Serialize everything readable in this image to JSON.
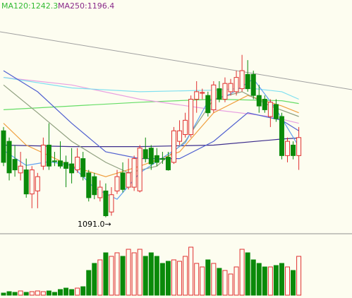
{
  "chart_data": {
    "type": "candlestick",
    "labels": [
      {
        "text": "MA120:1242.3",
        "color": "#33bb33"
      },
      {
        "text": "MA250:1196.4",
        "color": "#8a2a8a"
      }
    ],
    "annotation": "1091.0→",
    "up_color": "#e03030",
    "down_color": "#0a8a0a",
    "ylim": [
      1070,
      1380
    ],
    "open": [
      1206,
      1192,
      1168,
      1150,
      1154,
      1122,
      1126,
      1159,
      1187,
      1166,
      1166,
      1164,
      1162,
      1154,
      1169,
      1150,
      1145,
      1117,
      1126,
      1098,
      1126,
      1150,
      1131,
      1131,
      1126,
      1181,
      1183,
      1173,
      1169,
      1171,
      1164,
      1192,
      1201,
      1201,
      1248,
      1256,
      1253,
      1234,
      1262,
      1248,
      1258,
      1258,
      1262,
      1281,
      1281,
      1253,
      1248,
      1225,
      1241,
      1225,
      1173,
      1187,
      1173
    ],
    "high": [
      1211,
      1197,
      1187,
      1178,
      1169,
      1159,
      1150,
      1197,
      1216,
      1178,
      1192,
      1173,
      1183,
      1183,
      1178,
      1154,
      1150,
      1140,
      1136,
      1131,
      1154,
      1164,
      1169,
      1173,
      1187,
      1197,
      1187,
      1183,
      1178,
      1178,
      1211,
      1220,
      1230,
      1253,
      1272,
      1262,
      1258,
      1272,
      1272,
      1277,
      1275,
      1286,
      1307,
      1300,
      1286,
      1267,
      1253,
      1248,
      1248,
      1230,
      1197,
      1192,
      1211
    ],
    "low": [
      1159,
      1140,
      1145,
      1140,
      1117,
      1103,
      1103,
      1154,
      1154,
      1159,
      1156,
      1131,
      1136,
      1150,
      1140,
      1112,
      1115,
      1112,
      1091,
      1093,
      1122,
      1124,
      1128,
      1126,
      1124,
      1164,
      1154,
      1159,
      1162,
      1153,
      1162,
      1187,
      1197,
      1197,
      1230,
      1248,
      1225,
      1230,
      1244,
      1244,
      1253,
      1253,
      1258,
      1258,
      1248,
      1230,
      1230,
      1211,
      1218,
      1168,
      1164,
      1168,
      1154
    ],
    "close": [
      1164,
      1150,
      1154,
      1159,
      1122,
      1154,
      1145,
      1187,
      1159,
      1165,
      1159,
      1156,
      1150,
      1171,
      1145,
      1117,
      1121,
      1131,
      1093,
      1121,
      1145,
      1128,
      1150,
      1169,
      1183,
      1169,
      1162,
      1164,
      1168,
      1154,
      1206,
      1206,
      1220,
      1248,
      1258,
      1257,
      1230,
      1267,
      1248,
      1269,
      1269,
      1277,
      1286,
      1262,
      1253,
      1239,
      1234,
      1244,
      1222,
      1173,
      1192,
      1173,
      1197
    ],
    "volume": {
      "ylim": [
        0,
        80
      ],
      "values": [
        3,
        5,
        4,
        6,
        4,
        5,
        6,
        5,
        6,
        4,
        8,
        10,
        8,
        10,
        12,
        35,
        45,
        50,
        60,
        55,
        60,
        55,
        65,
        60,
        65,
        55,
        60,
        55,
        45,
        48,
        50,
        48,
        55,
        68,
        45,
        40,
        50,
        45,
        38,
        35,
        30,
        40,
        65,
        60,
        50,
        45,
        40,
        40,
        42,
        45,
        40,
        35,
        55
      ]
    },
    "lines": [
      {
        "name": "MA250",
        "color": "#3c2c8c",
        "x": [
          0,
          12,
          24,
          37,
          49,
          52
        ],
        "values": [
          1187,
          1185,
          1185,
          1187,
          1195,
          1196.4
        ]
      },
      {
        "name": "MA120",
        "color": "#66dd66",
        "x": [
          0,
          12,
          24,
          37,
          49,
          52
        ],
        "values": [
          1234,
          1239,
          1244,
          1248,
          1246,
          1242.3
        ]
      },
      {
        "color": "#e8a0e0",
        "x": [
          0,
          12,
          24,
          37,
          47,
          52
        ],
        "values": [
          1277,
          1267,
          1248,
          1234,
          1225,
          1216
        ]
      },
      {
        "color": "#80e0f0",
        "x": [
          0,
          12,
          24,
          37,
          43,
          49,
          52
        ],
        "values": [
          1277,
          1263,
          1258,
          1260,
          1263,
          1258,
          1248
        ]
      },
      {
        "color": "#f0a040",
        "x": [
          0,
          4,
          12,
          18,
          24,
          31,
          37,
          43,
          49,
          52
        ],
        "values": [
          1216,
          1187,
          1159,
          1145,
          1159,
          1178,
          1230,
          1253,
          1239,
          1230
        ]
      },
      {
        "color": "#90a080",
        "x": [
          0,
          6,
          12,
          18,
          22,
          27,
          32,
          37,
          42,
          47,
          52
        ],
        "values": [
          1267,
          1230,
          1192,
          1164,
          1150,
          1159,
          1192,
          1248,
          1258,
          1239,
          1225
        ]
      },
      {
        "color": "#5060d0",
        "x": [
          0,
          6,
          12,
          18,
          24,
          31,
          37,
          43,
          49,
          52
        ],
        "values": [
          1286,
          1258,
          1216,
          1178,
          1169,
          1169,
          1192,
          1230,
          1220,
          1206
        ]
      },
      {
        "color": "#60a0f0",
        "x": [
          0,
          4,
          8,
          12,
          16,
          20,
          24,
          28,
          32,
          36,
          40,
          44,
          48,
          52
        ],
        "values": [
          1180,
          1160,
          1165,
          1160,
          1130,
          1115,
          1150,
          1170,
          1190,
          1245,
          1255,
          1275,
          1235,
          1185
        ]
      }
    ]
  }
}
